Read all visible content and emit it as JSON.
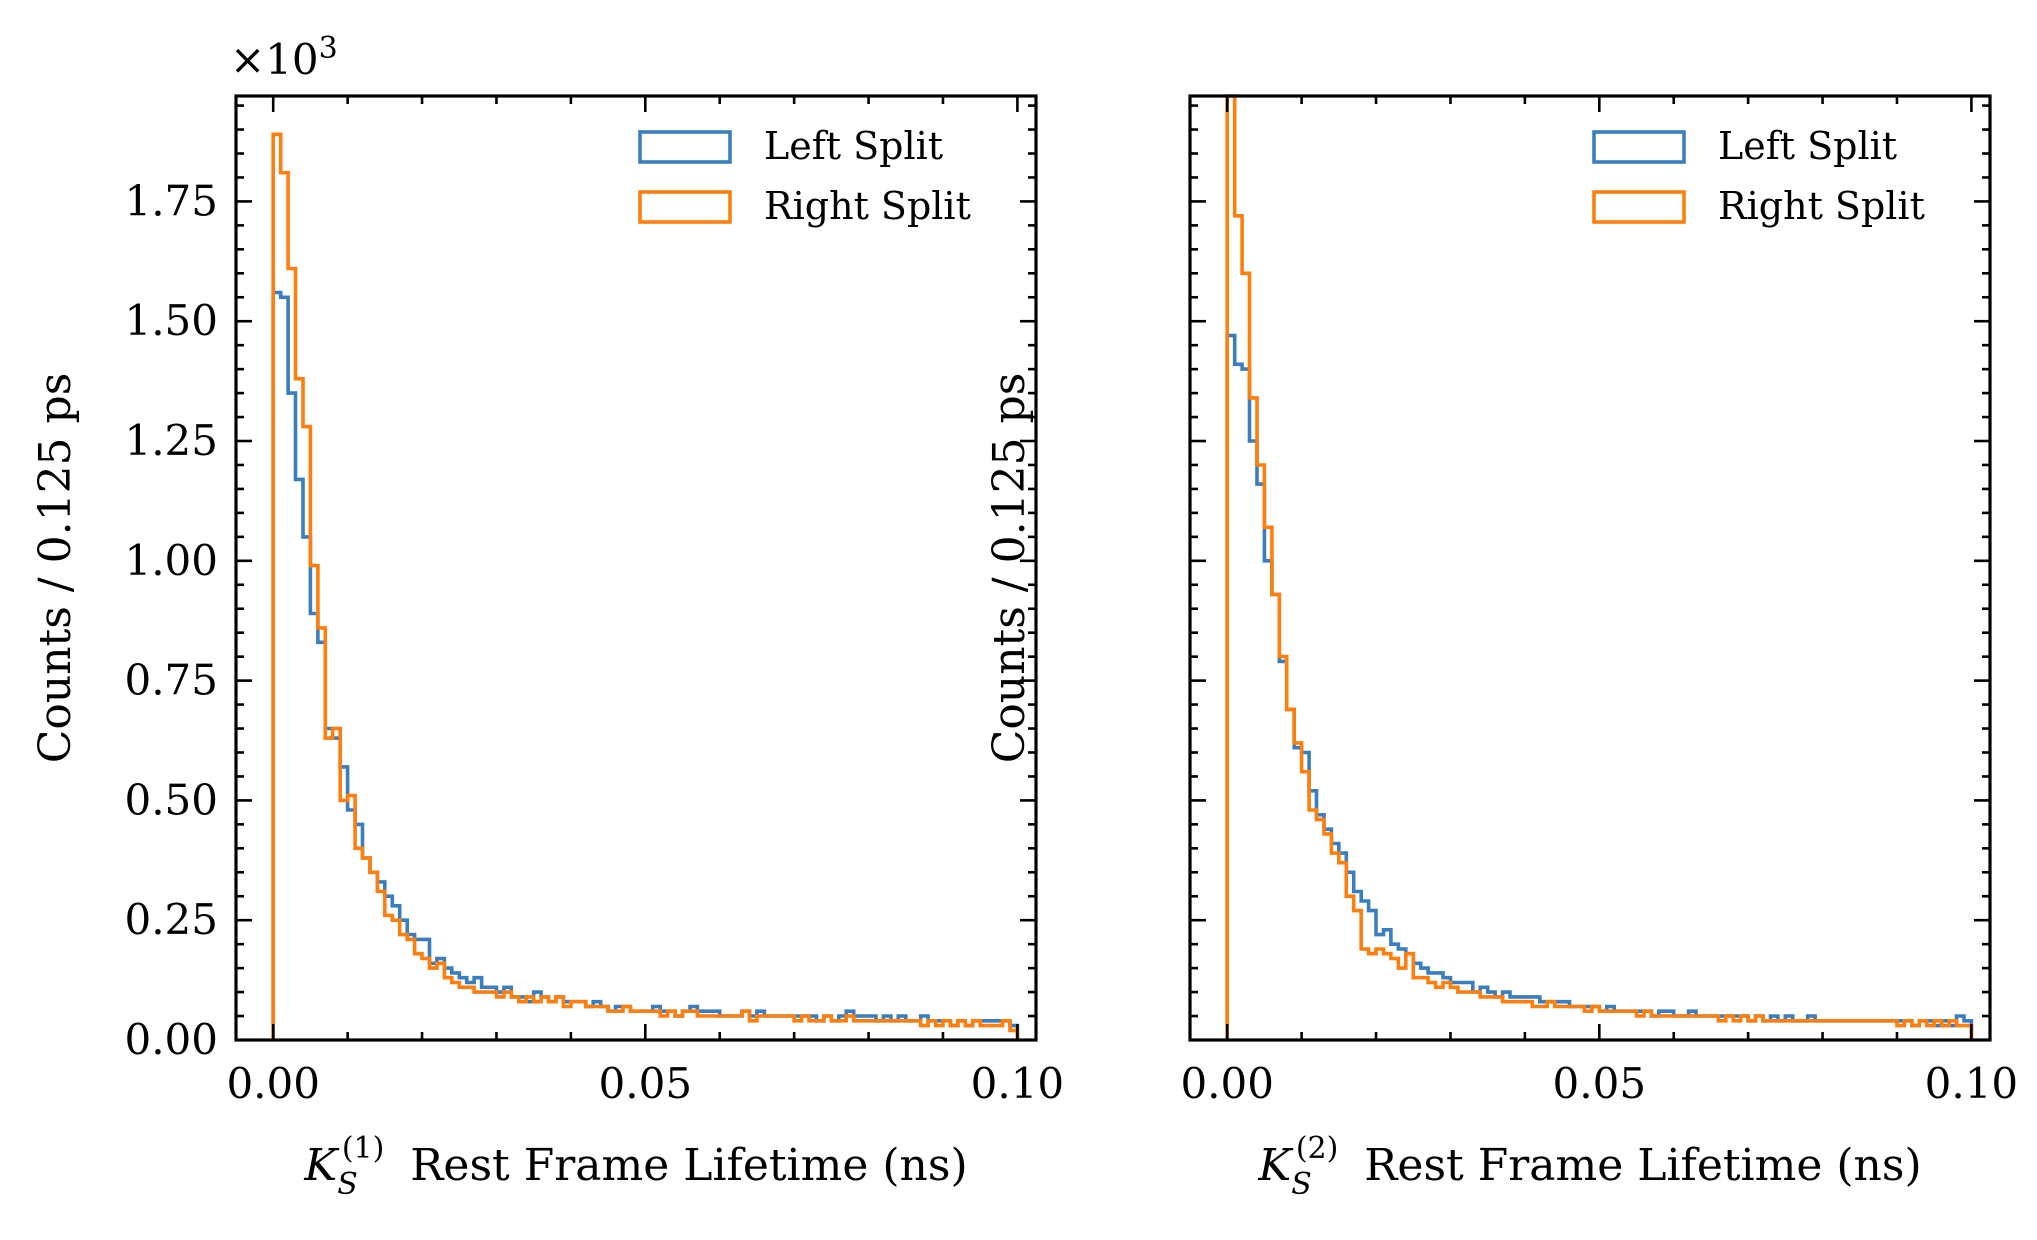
{
  "chart_data": [
    {
      "type": "histogram",
      "multiplier_label": "×10",
      "multiplier_exponent": "3",
      "ylabel": "Counts / 0.125 ps",
      "xlabel_symbol": "K",
      "xlabel_sub": "S",
      "xlabel_sup": "(1)",
      "xlabel_rest": "Rest Frame Lifetime (ns)",
      "xlim": [
        -0.005,
        0.1025
      ],
      "ylim": [
        0,
        1.97
      ],
      "xticks": [
        0.0,
        0.05,
        0.1
      ],
      "xtick_labels": [
        "0.00",
        "0.05",
        "0.10"
      ],
      "yticks": [
        0.0,
        0.25,
        0.5,
        0.75,
        1.0,
        1.25,
        1.5,
        1.75
      ],
      "ytick_labels": [
        "0.00",
        "0.25",
        "0.50",
        "0.75",
        "1.00",
        "1.25",
        "1.50",
        "1.75"
      ],
      "show_ytick_labels": true,
      "legend_position": "upper right",
      "bin_start": 0.0,
      "bin_width": 0.001,
      "series": [
        {
          "name": "Left Split",
          "color": "#3a7ebf",
          "values": [
            1.56,
            1.55,
            1.35,
            1.17,
            1.05,
            0.89,
            0.83,
            0.65,
            0.63,
            0.57,
            0.48,
            0.45,
            0.38,
            0.35,
            0.33,
            0.3,
            0.28,
            0.25,
            0.22,
            0.21,
            0.21,
            0.16,
            0.17,
            0.15,
            0.14,
            0.13,
            0.12,
            0.13,
            0.11,
            0.11,
            0.1,
            0.11,
            0.09,
            0.09,
            0.08,
            0.1,
            0.09,
            0.08,
            0.09,
            0.08,
            0.08,
            0.08,
            0.07,
            0.08,
            0.07,
            0.06,
            0.07,
            0.07,
            0.06,
            0.06,
            0.06,
            0.07,
            0.06,
            0.06,
            0.05,
            0.06,
            0.07,
            0.06,
            0.06,
            0.06,
            0.05,
            0.05,
            0.05,
            0.06,
            0.05,
            0.06,
            0.05,
            0.05,
            0.05,
            0.05,
            0.05,
            0.05,
            0.05,
            0.04,
            0.05,
            0.04,
            0.05,
            0.06,
            0.05,
            0.05,
            0.05,
            0.04,
            0.05,
            0.04,
            0.05,
            0.04,
            0.04,
            0.05,
            0.04,
            0.04,
            0.04,
            0.03,
            0.04,
            0.03,
            0.04,
            0.04,
            0.04,
            0.04,
            0.04,
            0.03
          ]
        },
        {
          "name": "Right Split",
          "color": "#ff7f0e",
          "values": [
            1.89,
            1.81,
            1.61,
            1.38,
            1.28,
            0.99,
            0.86,
            0.63,
            0.65,
            0.5,
            0.51,
            0.4,
            0.38,
            0.35,
            0.31,
            0.26,
            0.25,
            0.22,
            0.21,
            0.18,
            0.17,
            0.15,
            0.16,
            0.13,
            0.12,
            0.11,
            0.11,
            0.1,
            0.1,
            0.1,
            0.09,
            0.1,
            0.09,
            0.08,
            0.09,
            0.08,
            0.09,
            0.08,
            0.09,
            0.07,
            0.08,
            0.08,
            0.07,
            0.07,
            0.07,
            0.06,
            0.06,
            0.07,
            0.06,
            0.06,
            0.06,
            0.06,
            0.05,
            0.06,
            0.05,
            0.06,
            0.06,
            0.05,
            0.05,
            0.05,
            0.05,
            0.05,
            0.05,
            0.06,
            0.04,
            0.05,
            0.05,
            0.05,
            0.05,
            0.05,
            0.04,
            0.05,
            0.04,
            0.04,
            0.05,
            0.04,
            0.04,
            0.05,
            0.04,
            0.04,
            0.04,
            0.04,
            0.04,
            0.04,
            0.04,
            0.04,
            0.04,
            0.03,
            0.04,
            0.03,
            0.04,
            0.03,
            0.04,
            0.03,
            0.04,
            0.03,
            0.03,
            0.03,
            0.04,
            0.02
          ]
        }
      ]
    },
    {
      "type": "histogram",
      "multiplier_label": "",
      "multiplier_exponent": "",
      "ylabel": "Counts / 0.125 ps",
      "xlabel_symbol": "K",
      "xlabel_sub": "S",
      "xlabel_sup": "(2)",
      "xlabel_rest": "Rest Frame Lifetime (ns)",
      "xlim": [
        -0.005,
        0.1025
      ],
      "ylim": [
        0,
        1.97
      ],
      "xticks": [
        0.0,
        0.05,
        0.1
      ],
      "xtick_labels": [
        "0.00",
        "0.05",
        "0.10"
      ],
      "yticks": [
        0.0,
        0.25,
        0.5,
        0.75,
        1.0,
        1.25,
        1.5,
        1.75
      ],
      "ytick_labels": [],
      "show_ytick_labels": false,
      "legend_position": "upper right",
      "bin_start": 0.0,
      "bin_width": 0.001,
      "series": [
        {
          "name": "Left Split",
          "color": "#3a7ebf",
          "values": [
            1.47,
            1.41,
            1.4,
            1.25,
            1.16,
            1.0,
            0.93,
            0.79,
            0.69,
            0.61,
            0.6,
            0.52,
            0.47,
            0.44,
            0.41,
            0.39,
            0.35,
            0.31,
            0.29,
            0.27,
            0.22,
            0.23,
            0.2,
            0.19,
            0.18,
            0.16,
            0.15,
            0.14,
            0.14,
            0.13,
            0.12,
            0.12,
            0.12,
            0.1,
            0.11,
            0.1,
            0.09,
            0.1,
            0.09,
            0.09,
            0.09,
            0.09,
            0.08,
            0.08,
            0.08,
            0.08,
            0.07,
            0.07,
            0.07,
            0.07,
            0.06,
            0.07,
            0.06,
            0.06,
            0.06,
            0.06,
            0.06,
            0.05,
            0.06,
            0.06,
            0.05,
            0.05,
            0.06,
            0.05,
            0.05,
            0.05,
            0.05,
            0.05,
            0.05,
            0.05,
            0.04,
            0.05,
            0.04,
            0.05,
            0.04,
            0.05,
            0.04,
            0.04,
            0.05,
            0.04,
            0.04,
            0.04,
            0.04,
            0.04,
            0.04,
            0.04,
            0.04,
            0.04,
            0.04,
            0.04,
            0.04,
            0.04,
            0.03,
            0.04,
            0.04,
            0.03,
            0.04,
            0.03,
            0.05,
            0.04
          ]
        },
        {
          "name": "Right Split",
          "color": "#ff7f0e",
          "values": [
            1.97,
            1.72,
            1.6,
            1.34,
            1.2,
            1.07,
            0.93,
            0.8,
            0.69,
            0.62,
            0.56,
            0.48,
            0.46,
            0.43,
            0.39,
            0.37,
            0.3,
            0.27,
            0.19,
            0.18,
            0.19,
            0.18,
            0.17,
            0.15,
            0.18,
            0.13,
            0.13,
            0.12,
            0.11,
            0.12,
            0.11,
            0.1,
            0.1,
            0.1,
            0.09,
            0.09,
            0.09,
            0.08,
            0.08,
            0.08,
            0.08,
            0.07,
            0.07,
            0.08,
            0.07,
            0.07,
            0.07,
            0.07,
            0.06,
            0.07,
            0.06,
            0.06,
            0.06,
            0.06,
            0.06,
            0.05,
            0.06,
            0.05,
            0.05,
            0.05,
            0.05,
            0.05,
            0.05,
            0.05,
            0.05,
            0.05,
            0.04,
            0.05,
            0.04,
            0.05,
            0.04,
            0.05,
            0.04,
            0.04,
            0.04,
            0.04,
            0.04,
            0.04,
            0.04,
            0.04,
            0.04,
            0.04,
            0.04,
            0.04,
            0.04,
            0.04,
            0.04,
            0.04,
            0.04,
            0.04,
            0.03,
            0.04,
            0.03,
            0.04,
            0.03,
            0.04,
            0.03,
            0.04,
            0.03,
            0.03
          ]
        }
      ]
    }
  ]
}
